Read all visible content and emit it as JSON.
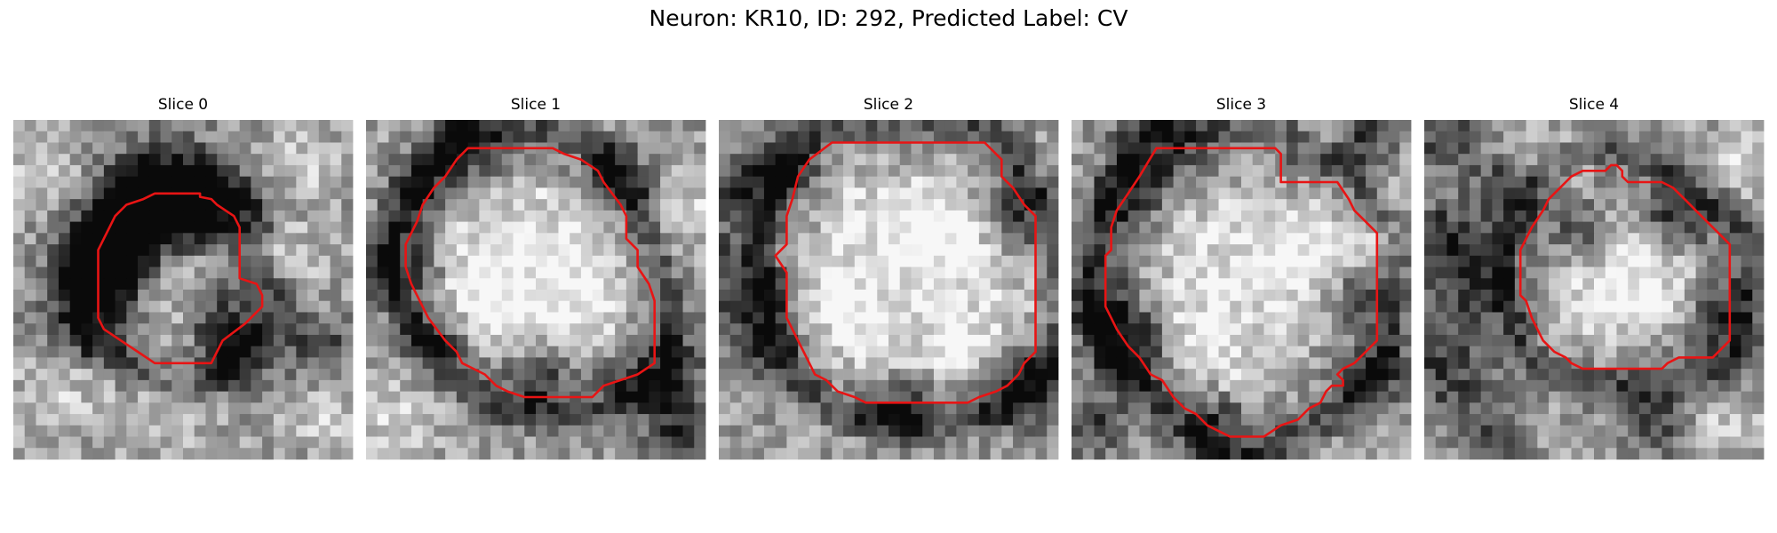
{
  "figure": {
    "title": "Neuron: KR10, ID: 292, Predicted Label: CV",
    "contour_color": "#e81414"
  },
  "panels": [
    {
      "title": "Slice 0",
      "contour": [
        [
          13.5,
          6.5
        ],
        [
          16.5,
          6.5
        ],
        [
          16.5,
          6.8
        ],
        [
          17.5,
          7.0
        ],
        [
          18.0,
          7.5
        ],
        [
          19.5,
          8.5
        ],
        [
          20.0,
          9.5
        ],
        [
          20.0,
          12.5
        ],
        [
          20.0,
          14.0
        ],
        [
          21.5,
          14.5
        ],
        [
          22.0,
          15.5
        ],
        [
          22.0,
          16.5
        ],
        [
          20.5,
          18.0
        ],
        [
          18.5,
          19.5
        ],
        [
          18.0,
          20.5
        ],
        [
          17.5,
          21.5
        ],
        [
          12.5,
          21.5
        ],
        [
          11.0,
          20.5
        ],
        [
          9.5,
          19.5
        ],
        [
          8.0,
          18.5
        ],
        [
          7.5,
          17.5
        ],
        [
          7.5,
          16.0
        ],
        [
          7.5,
          14.5
        ],
        [
          7.5,
          11.5
        ],
        [
          8.5,
          9.5
        ],
        [
          9.0,
          8.5
        ],
        [
          10.0,
          7.5
        ],
        [
          11.5,
          7.0
        ],
        [
          12.5,
          6.5
        ]
      ],
      "dark": [
        [
          12,
          8,
          4
        ],
        [
          15,
          7,
          3.5
        ],
        [
          8,
          13,
          3
        ],
        [
          7,
          17,
          3
        ],
        [
          10,
          11,
          2
        ],
        [
          17,
          8,
          2
        ],
        [
          20,
          21,
          2.5
        ],
        [
          27,
          20,
          2
        ],
        [
          18,
          17,
          2
        ]
      ],
      "light": [
        [
          15,
          14,
          3
        ],
        [
          3,
          4,
          2.5
        ],
        [
          26,
          4,
          2
        ],
        [
          24,
          12,
          2
        ],
        [
          4,
          24,
          2.5
        ],
        [
          14,
          24,
          3
        ],
        [
          27,
          26,
          2
        ]
      ]
    },
    {
      "title": "Slice 1",
      "contour": [
        [
          9.0,
          2.5
        ],
        [
          16.5,
          2.5
        ],
        [
          17.5,
          3.0
        ],
        [
          19.0,
          3.5
        ],
        [
          20.5,
          4.5
        ],
        [
          21.0,
          5.5
        ],
        [
          22.5,
          7.5
        ],
        [
          23.0,
          8.5
        ],
        [
          23.0,
          10.5
        ],
        [
          24.0,
          11.5
        ],
        [
          24.0,
          13.0
        ],
        [
          25.0,
          14.5
        ],
        [
          25.5,
          16.0
        ],
        [
          25.5,
          19.5
        ],
        [
          25.5,
          21.5
        ],
        [
          24.0,
          22.5
        ],
        [
          22.5,
          23.0
        ],
        [
          21.0,
          23.5
        ],
        [
          20.0,
          24.5
        ],
        [
          14.0,
          24.5
        ],
        [
          12.5,
          24.0
        ],
        [
          11.5,
          23.5
        ],
        [
          10.5,
          22.5
        ],
        [
          9.5,
          22.0
        ],
        [
          8.5,
          21.5
        ],
        [
          8.0,
          20.5
        ],
        [
          7.0,
          19.5
        ],
        [
          5.5,
          17.5
        ],
        [
          4.5,
          15.5
        ],
        [
          4.0,
          14.5
        ],
        [
          3.5,
          13.0
        ],
        [
          3.5,
          11.0
        ],
        [
          4.0,
          10.0
        ],
        [
          4.5,
          9.0
        ],
        [
          5.0,
          7.5
        ],
        [
          6.0,
          6.0
        ],
        [
          7.0,
          5.0
        ],
        [
          8.0,
          3.5
        ]
      ],
      "dark": [
        [
          9,
          2,
          2.5
        ],
        [
          3,
          13,
          2.5
        ],
        [
          6,
          20,
          2
        ],
        [
          5,
          6,
          2
        ],
        [
          22,
          5,
          2
        ],
        [
          26,
          23,
          3
        ],
        [
          15,
          23,
          2
        ],
        [
          28,
          28,
          2
        ]
      ],
      "light": [
        [
          14,
          12,
          5
        ],
        [
          20,
          15,
          3
        ],
        [
          2,
          26,
          3
        ],
        [
          29,
          8,
          2
        ],
        [
          10,
          16,
          3
        ]
      ]
    },
    {
      "title": "Slice 2",
      "contour": [
        [
          10.0,
          2.0
        ],
        [
          23.5,
          2.0
        ],
        [
          25.0,
          3.5
        ],
        [
          25.0,
          5.0
        ],
        [
          26.0,
          6.0
        ],
        [
          27.0,
          7.5
        ],
        [
          28.0,
          8.5
        ],
        [
          28.0,
          11.0
        ],
        [
          28.0,
          20.5
        ],
        [
          27.0,
          21.5
        ],
        [
          26.5,
          22.5
        ],
        [
          25.5,
          23.5
        ],
        [
          24.5,
          24.0
        ],
        [
          23.0,
          24.5
        ],
        [
          22.0,
          25.0
        ],
        [
          13.0,
          25.0
        ],
        [
          12.0,
          24.5
        ],
        [
          10.5,
          24.0
        ],
        [
          9.5,
          23.0
        ],
        [
          8.5,
          22.5
        ],
        [
          8.0,
          21.5
        ],
        [
          7.5,
          20.5
        ],
        [
          7.0,
          19.5
        ],
        [
          6.5,
          18.5
        ],
        [
          6.0,
          17.5
        ],
        [
          6.0,
          16.5
        ],
        [
          6.0,
          15.5
        ],
        [
          6.0,
          13.5
        ],
        [
          5.0,
          12.0
        ],
        [
          6.0,
          11.0
        ],
        [
          6.0,
          10.0
        ],
        [
          6.0,
          8.5
        ],
        [
          6.5,
          7.0
        ],
        [
          7.0,
          5.0
        ],
        [
          8.0,
          3.5
        ]
      ],
      "dark": [
        [
          1,
          14,
          3
        ],
        [
          2,
          6,
          2.5
        ],
        [
          4,
          20,
          2.5
        ],
        [
          26,
          8,
          2
        ],
        [
          27,
          24,
          2.5
        ],
        [
          16,
          26,
          2
        ],
        [
          6,
          4,
          2
        ]
      ],
      "light": [
        [
          15,
          12,
          6
        ],
        [
          10,
          18,
          3
        ],
        [
          20,
          10,
          3
        ],
        [
          28,
          16,
          2
        ],
        [
          22,
          20,
          3
        ]
      ]
    },
    {
      "title": "Slice 3",
      "contour": [
        [
          7.5,
          2.5
        ],
        [
          11.5,
          2.5
        ],
        [
          13.5,
          2.5
        ],
        [
          18.0,
          2.5
        ],
        [
          18.5,
          3.0
        ],
        [
          18.5,
          5.5
        ],
        [
          20.5,
          5.5
        ],
        [
          23.5,
          5.5
        ],
        [
          24.5,
          7.0
        ],
        [
          25.0,
          8.0
        ],
        [
          26.0,
          9.0
        ],
        [
          27.0,
          10.0
        ],
        [
          27.0,
          11.5
        ],
        [
          27.0,
          19.5
        ],
        [
          26.0,
          20.5
        ],
        [
          25.0,
          21.5
        ],
        [
          24.0,
          22.0
        ],
        [
          23.5,
          22.5
        ],
        [
          24.0,
          23.0
        ],
        [
          24.0,
          23.5
        ],
        [
          23.0,
          23.5
        ],
        [
          22.5,
          24.0
        ],
        [
          22.0,
          25.0
        ],
        [
          21.0,
          25.5
        ],
        [
          20.0,
          26.5
        ],
        [
          18.5,
          27.0
        ],
        [
          17.0,
          28.0
        ],
        [
          14.0,
          28.0
        ],
        [
          13.0,
          27.5
        ],
        [
          12.0,
          27.0
        ],
        [
          11.0,
          26.0
        ],
        [
          10.0,
          25.5
        ],
        [
          9.0,
          24.5
        ],
        [
          8.0,
          23.0
        ],
        [
          7.0,
          22.5
        ],
        [
          6.0,
          21.0
        ],
        [
          5.0,
          20.0
        ],
        [
          4.0,
          18.5
        ],
        [
          3.5,
          17.5
        ],
        [
          3.0,
          16.5
        ],
        [
          3.0,
          15.0
        ],
        [
          3.0,
          12.0
        ],
        [
          3.5,
          11.5
        ],
        [
          3.5,
          9.5
        ],
        [
          4.0,
          8.0
        ],
        [
          5.0,
          6.5
        ],
        [
          6.0,
          5.0
        ]
      ],
      "dark": [
        [
          8,
          3,
          3
        ],
        [
          4,
          17,
          3
        ],
        [
          6,
          21,
          2.5
        ],
        [
          13,
          27,
          2
        ],
        [
          26,
          1,
          2
        ],
        [
          25,
          16,
          2
        ],
        [
          27,
          23,
          2
        ],
        [
          2,
          27,
          2
        ],
        [
          5,
          8,
          2
        ]
      ],
      "light": [
        [
          15,
          13,
          6
        ],
        [
          22,
          11,
          3
        ],
        [
          10,
          20,
          3
        ],
        [
          28,
          10,
          2
        ]
      ]
    },
    {
      "title": "Slice 4",
      "contour": [
        [
          14.0,
          4.5
        ],
        [
          15.5,
          4.5
        ],
        [
          16.0,
          4.5
        ],
        [
          16.5,
          4.0
        ],
        [
          17.0,
          4.0
        ],
        [
          17.5,
          4.5
        ],
        [
          17.5,
          5.0
        ],
        [
          18.0,
          5.5
        ],
        [
          19.0,
          5.5
        ],
        [
          20.0,
          5.5
        ],
        [
          21.0,
          5.5
        ],
        [
          22.0,
          6.0
        ],
        [
          23.0,
          7.0
        ],
        [
          24.0,
          8.0
        ],
        [
          25.0,
          9.0
        ],
        [
          26.0,
          10.0
        ],
        [
          27.0,
          11.0
        ],
        [
          27.0,
          14.0
        ],
        [
          27.0,
          17.0
        ],
        [
          27.0,
          19.5
        ],
        [
          26.5,
          20.0
        ],
        [
          25.5,
          21.0
        ],
        [
          22.5,
          21.0
        ],
        [
          21.5,
          21.5
        ],
        [
          21.0,
          22.0
        ],
        [
          14.0,
          22.0
        ],
        [
          13.0,
          21.5
        ],
        [
          12.5,
          21.0
        ],
        [
          11.5,
          20.5
        ],
        [
          10.5,
          19.5
        ],
        [
          10.0,
          18.5
        ],
        [
          9.5,
          17.5
        ],
        [
          9.0,
          16.0
        ],
        [
          8.5,
          15.5
        ],
        [
          8.5,
          14.5
        ],
        [
          8.5,
          13.0
        ],
        [
          8.5,
          11.5
        ],
        [
          9.0,
          10.5
        ],
        [
          9.5,
          9.5
        ],
        [
          10.5,
          8.0
        ],
        [
          11.0,
          7.0
        ],
        [
          12.0,
          6.0
        ],
        [
          12.5,
          5.5
        ],
        [
          13.0,
          5.0
        ]
      ],
      "dark": [
        [
          2,
          22,
          3
        ],
        [
          4,
          14,
          3
        ],
        [
          1,
          10,
          2
        ],
        [
          7,
          6,
          2
        ],
        [
          14,
          10,
          2
        ],
        [
          22,
          9,
          2
        ],
        [
          6,
          28,
          2
        ],
        [
          20,
          27,
          2
        ],
        [
          26,
          18,
          2
        ],
        [
          2,
          2,
          2
        ]
      ],
      "light": [
        [
          16,
          15,
          4
        ],
        [
          20,
          13,
          2
        ],
        [
          12,
          4,
          2
        ],
        [
          28,
          4,
          2
        ],
        [
          27,
          27,
          2
        ]
      ]
    }
  ]
}
